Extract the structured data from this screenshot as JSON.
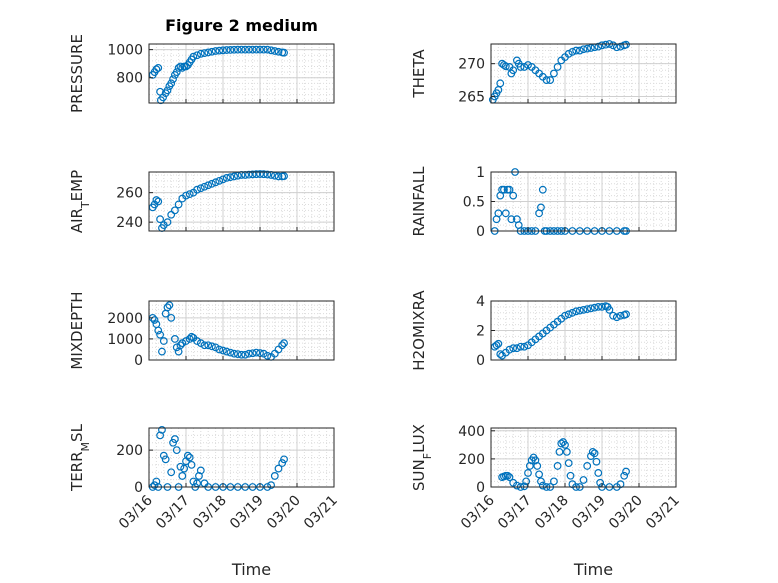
{
  "title": "Figure 2 medium",
  "chart_data": [
    {
      "type": "scatter",
      "ylabel": "PRESSURE",
      "title": "Figure 2 medium",
      "xlim": [
        "03/16",
        "03/21"
      ],
      "ylim": [
        620,
        1040
      ],
      "yticks": [
        800,
        1000
      ],
      "xlabel": "",
      "points": [
        [
          0.1,
          820
        ],
        [
          0.15,
          840
        ],
        [
          0.2,
          860
        ],
        [
          0.25,
          870
        ],
        [
          0.3,
          700
        ],
        [
          0.32,
          640
        ],
        [
          0.38,
          660
        ],
        [
          0.45,
          690
        ],
        [
          0.5,
          710
        ],
        [
          0.55,
          740
        ],
        [
          0.6,
          760
        ],
        [
          0.65,
          790
        ],
        [
          0.7,
          820
        ],
        [
          0.75,
          840
        ],
        [
          0.8,
          870
        ],
        [
          0.85,
          880
        ],
        [
          0.9,
          870
        ],
        [
          0.95,
          880
        ],
        [
          1.0,
          880
        ],
        [
          1.05,
          890
        ],
        [
          1.1,
          910
        ],
        [
          1.15,
          930
        ],
        [
          1.2,
          950
        ],
        [
          1.3,
          960
        ],
        [
          1.4,
          970
        ],
        [
          1.5,
          975
        ],
        [
          1.6,
          980
        ],
        [
          1.7,
          985
        ],
        [
          1.8,
          990
        ],
        [
          1.9,
          993
        ],
        [
          2.0,
          995
        ],
        [
          2.1,
          997
        ],
        [
          2.2,
          998
        ],
        [
          2.3,
          999
        ],
        [
          2.4,
          1000
        ],
        [
          2.5,
          1000
        ],
        [
          2.6,
          1000
        ],
        [
          2.7,
          1000
        ],
        [
          2.8,
          1000
        ],
        [
          2.9,
          1000
        ],
        [
          3.0,
          1000
        ],
        [
          3.1,
          1000
        ],
        [
          3.2,
          1000
        ],
        [
          3.3,
          995
        ],
        [
          3.4,
          990
        ],
        [
          3.5,
          985
        ],
        [
          3.6,
          980
        ],
        [
          3.65,
          978
        ]
      ]
    },
    {
      "type": "scatter",
      "ylabel": "THETA",
      "xlim": [
        "03/16",
        "03/21"
      ],
      "ylim": [
        264,
        273
      ],
      "yticks": [
        265,
        270
      ],
      "xlabel": "",
      "points": [
        [
          0.05,
          264.5
        ],
        [
          0.1,
          265
        ],
        [
          0.15,
          265.5
        ],
        [
          0.2,
          266
        ],
        [
          0.25,
          267
        ],
        [
          0.3,
          270
        ],
        [
          0.35,
          269.8
        ],
        [
          0.4,
          269.6
        ],
        [
          0.5,
          269.5
        ],
        [
          0.55,
          268.5
        ],
        [
          0.6,
          269
        ],
        [
          0.7,
          270.5
        ],
        [
          0.75,
          270
        ],
        [
          0.8,
          269.5
        ],
        [
          0.9,
          269.5
        ],
        [
          1.0,
          269.8
        ],
        [
          1.1,
          269.5
        ],
        [
          1.2,
          269
        ],
        [
          1.3,
          268.5
        ],
        [
          1.4,
          268
        ],
        [
          1.5,
          267.5
        ],
        [
          1.6,
          267.5
        ],
        [
          1.7,
          268.5
        ],
        [
          1.8,
          269.5
        ],
        [
          1.9,
          270.5
        ],
        [
          2.0,
          271
        ],
        [
          2.1,
          271.5
        ],
        [
          2.2,
          271.8
        ],
        [
          2.3,
          272
        ],
        [
          2.4,
          272
        ],
        [
          2.5,
          272.2
        ],
        [
          2.6,
          272.3
        ],
        [
          2.7,
          272.4
        ],
        [
          2.8,
          272.5
        ],
        [
          2.9,
          272.6
        ],
        [
          3.0,
          272.8
        ],
        [
          3.1,
          272.9
        ],
        [
          3.2,
          273
        ],
        [
          3.3,
          272.8
        ],
        [
          3.4,
          272.5
        ],
        [
          3.5,
          272.6
        ],
        [
          3.6,
          272.8
        ],
        [
          3.65,
          272.9
        ]
      ]
    },
    {
      "type": "scatter",
      "ylabel": "AIR_TEMP",
      "xlim": [
        "03/16",
        "03/21"
      ],
      "ylim": [
        234,
        274
      ],
      "yticks": [
        240,
        260
      ],
      "xlabel": "",
      "points": [
        [
          0.1,
          250
        ],
        [
          0.15,
          252
        ],
        [
          0.2,
          255
        ],
        [
          0.25,
          254
        ],
        [
          0.3,
          242
        ],
        [
          0.35,
          236
        ],
        [
          0.4,
          238
        ],
        [
          0.5,
          240
        ],
        [
          0.6,
          245
        ],
        [
          0.7,
          248
        ],
        [
          0.8,
          252
        ],
        [
          0.9,
          256
        ],
        [
          1.0,
          258
        ],
        [
          1.1,
          259
        ],
        [
          1.2,
          260
        ],
        [
          1.3,
          262
        ],
        [
          1.4,
          263
        ],
        [
          1.5,
          264
        ],
        [
          1.6,
          265
        ],
        [
          1.7,
          266
        ],
        [
          1.8,
          267
        ],
        [
          1.9,
          268
        ],
        [
          2.0,
          269
        ],
        [
          2.1,
          270
        ],
        [
          2.2,
          270.5
        ],
        [
          2.3,
          271
        ],
        [
          2.4,
          271.5
        ],
        [
          2.5,
          272
        ],
        [
          2.6,
          272
        ],
        [
          2.7,
          272.2
        ],
        [
          2.8,
          272.4
        ],
        [
          2.9,
          272.5
        ],
        [
          3.0,
          272.6
        ],
        [
          3.1,
          272.5
        ],
        [
          3.2,
          272.3
        ],
        [
          3.3,
          272
        ],
        [
          3.4,
          271.5
        ],
        [
          3.5,
          271
        ],
        [
          3.6,
          271
        ],
        [
          3.65,
          271.2
        ]
      ]
    },
    {
      "type": "scatter",
      "ylabel": "RAINFALL",
      "xlim": [
        "03/16",
        "03/21"
      ],
      "ylim": [
        0,
        1
      ],
      "yticks": [
        0,
        0.5,
        1
      ],
      "xlabel": "",
      "points": [
        [
          0.1,
          0
        ],
        [
          0.15,
          0.2
        ],
        [
          0.2,
          0.3
        ],
        [
          0.25,
          0.6
        ],
        [
          0.3,
          0.7
        ],
        [
          0.35,
          0.7
        ],
        [
          0.4,
          0.3
        ],
        [
          0.45,
          0.7
        ],
        [
          0.5,
          0.7
        ],
        [
          0.55,
          0.2
        ],
        [
          0.6,
          0.6
        ],
        [
          0.65,
          1.0
        ],
        [
          0.7,
          0.2
        ],
        [
          0.75,
          0.1
        ],
        [
          0.8,
          0
        ],
        [
          0.9,
          0
        ],
        [
          1.0,
          0
        ],
        [
          1.1,
          0
        ],
        [
          1.2,
          0
        ],
        [
          1.3,
          0.3
        ],
        [
          1.35,
          0.4
        ],
        [
          1.4,
          0.7
        ],
        [
          1.45,
          0
        ],
        [
          1.5,
          0
        ],
        [
          1.6,
          0
        ],
        [
          1.7,
          0
        ],
        [
          1.8,
          0
        ],
        [
          1.9,
          0
        ],
        [
          2.0,
          0
        ],
        [
          2.2,
          0
        ],
        [
          2.4,
          0
        ],
        [
          2.6,
          0
        ],
        [
          2.8,
          0
        ],
        [
          3.0,
          0
        ],
        [
          3.2,
          0
        ],
        [
          3.4,
          0
        ],
        [
          3.6,
          0
        ],
        [
          3.65,
          0
        ]
      ]
    },
    {
      "type": "scatter",
      "ylabel": "MIXDEPTH",
      "xlim": [
        "03/16",
        "03/21"
      ],
      "ylim": [
        0,
        2800
      ],
      "yticks": [
        0,
        1000,
        2000
      ],
      "xlabel": "",
      "points": [
        [
          0.1,
          2000
        ],
        [
          0.15,
          1900
        ],
        [
          0.2,
          1700
        ],
        [
          0.25,
          1400
        ],
        [
          0.3,
          1200
        ],
        [
          0.35,
          400
        ],
        [
          0.4,
          900
        ],
        [
          0.45,
          2200
        ],
        [
          0.5,
          2500
        ],
        [
          0.55,
          2600
        ],
        [
          0.6,
          2000
        ],
        [
          0.7,
          1000
        ],
        [
          0.75,
          600
        ],
        [
          0.8,
          400
        ],
        [
          0.85,
          700
        ],
        [
          0.9,
          800
        ],
        [
          1.0,
          900
        ],
        [
          1.1,
          1000
        ],
        [
          1.15,
          1100
        ],
        [
          1.2,
          1050
        ],
        [
          1.3,
          900
        ],
        [
          1.4,
          800
        ],
        [
          1.5,
          700
        ],
        [
          1.6,
          700
        ],
        [
          1.7,
          650
        ],
        [
          1.8,
          600
        ],
        [
          1.9,
          500
        ],
        [
          2.0,
          450
        ],
        [
          2.1,
          400
        ],
        [
          2.2,
          350
        ],
        [
          2.3,
          300
        ],
        [
          2.4,
          280
        ],
        [
          2.5,
          250
        ],
        [
          2.6,
          250
        ],
        [
          2.7,
          300
        ],
        [
          2.8,
          320
        ],
        [
          2.9,
          350
        ],
        [
          3.0,
          330
        ],
        [
          3.1,
          300
        ],
        [
          3.2,
          200
        ],
        [
          3.3,
          150
        ],
        [
          3.4,
          300
        ],
        [
          3.5,
          500
        ],
        [
          3.6,
          700
        ],
        [
          3.65,
          800
        ]
      ]
    },
    {
      "type": "scatter",
      "ylabel": "H2OMIXRA",
      "xlim": [
        "03/16",
        "03/21"
      ],
      "ylim": [
        0,
        4
      ],
      "yticks": [
        0,
        2,
        4
      ],
      "xlabel": "",
      "points": [
        [
          0.1,
          0.9
        ],
        [
          0.15,
          1.0
        ],
        [
          0.2,
          1.1
        ],
        [
          0.25,
          0.4
        ],
        [
          0.3,
          0.3
        ],
        [
          0.4,
          0.5
        ],
        [
          0.5,
          0.7
        ],
        [
          0.6,
          0.8
        ],
        [
          0.7,
          0.8
        ],
        [
          0.8,
          0.9
        ],
        [
          0.9,
          0.9
        ],
        [
          1.0,
          1.0
        ],
        [
          1.1,
          1.2
        ],
        [
          1.2,
          1.4
        ],
        [
          1.3,
          1.6
        ],
        [
          1.4,
          1.8
        ],
        [
          1.5,
          2.0
        ],
        [
          1.6,
          2.2
        ],
        [
          1.7,
          2.4
        ],
        [
          1.8,
          2.6
        ],
        [
          1.9,
          2.8
        ],
        [
          2.0,
          3.0
        ],
        [
          2.1,
          3.1
        ],
        [
          2.2,
          3.2
        ],
        [
          2.3,
          3.3
        ],
        [
          2.4,
          3.35
        ],
        [
          2.5,
          3.4
        ],
        [
          2.6,
          3.45
        ],
        [
          2.7,
          3.5
        ],
        [
          2.8,
          3.55
        ],
        [
          2.9,
          3.6
        ],
        [
          3.0,
          3.6
        ],
        [
          3.1,
          3.65
        ],
        [
          3.15,
          3.6
        ],
        [
          3.2,
          3.4
        ],
        [
          3.3,
          3.0
        ],
        [
          3.4,
          2.9
        ],
        [
          3.5,
          3.0
        ],
        [
          3.6,
          3.05
        ],
        [
          3.65,
          3.1
        ]
      ]
    },
    {
      "type": "scatter",
      "ylabel": "TERR_MSL",
      "xlim": [
        "03/16",
        "03/21"
      ],
      "ylim": [
        0,
        320
      ],
      "yticks": [
        0,
        200
      ],
      "xlabel": "Time",
      "points": [
        [
          0.1,
          0
        ],
        [
          0.15,
          10
        ],
        [
          0.2,
          30
        ],
        [
          0.25,
          0
        ],
        [
          0.3,
          280
        ],
        [
          0.35,
          310
        ],
        [
          0.4,
          170
        ],
        [
          0.45,
          150
        ],
        [
          0.5,
          0
        ],
        [
          0.6,
          80
        ],
        [
          0.65,
          240
        ],
        [
          0.7,
          260
        ],
        [
          0.75,
          200
        ],
        [
          0.8,
          0
        ],
        [
          0.85,
          110
        ],
        [
          0.9,
          60
        ],
        [
          0.95,
          100
        ],
        [
          1.0,
          140
        ],
        [
          1.05,
          170
        ],
        [
          1.1,
          160
        ],
        [
          1.15,
          120
        ],
        [
          1.2,
          30
        ],
        [
          1.25,
          0
        ],
        [
          1.3,
          20
        ],
        [
          1.35,
          60
        ],
        [
          1.4,
          90
        ],
        [
          1.5,
          20
        ],
        [
          1.6,
          0
        ],
        [
          1.8,
          0
        ],
        [
          2.0,
          0
        ],
        [
          2.2,
          0
        ],
        [
          2.4,
          0
        ],
        [
          2.6,
          0
        ],
        [
          2.8,
          0
        ],
        [
          3.0,
          0
        ],
        [
          3.2,
          0
        ],
        [
          3.3,
          10
        ],
        [
          3.4,
          60
        ],
        [
          3.5,
          100
        ],
        [
          3.6,
          130
        ],
        [
          3.65,
          150
        ]
      ]
    },
    {
      "type": "scatter",
      "ylabel": "SUN_FLUX",
      "xlim": [
        "03/16",
        "03/21"
      ],
      "ylim": [
        0,
        420
      ],
      "yticks": [
        0,
        200,
        400
      ],
      "xlabel": "Time",
      "points": [
        [
          0.3,
          70
        ],
        [
          0.35,
          75
        ],
        [
          0.4,
          80
        ],
        [
          0.45,
          80
        ],
        [
          0.5,
          70
        ],
        [
          0.6,
          30
        ],
        [
          0.7,
          10
        ],
        [
          0.8,
          0
        ],
        [
          0.9,
          5
        ],
        [
          0.95,
          40
        ],
        [
          1.0,
          100
        ],
        [
          1.05,
          150
        ],
        [
          1.1,
          190
        ],
        [
          1.15,
          210
        ],
        [
          1.2,
          190
        ],
        [
          1.25,
          150
        ],
        [
          1.3,
          90
        ],
        [
          1.35,
          40
        ],
        [
          1.4,
          10
        ],
        [
          1.5,
          0
        ],
        [
          1.6,
          0
        ],
        [
          1.7,
          40
        ],
        [
          1.8,
          150
        ],
        [
          1.85,
          250
        ],
        [
          1.9,
          310
        ],
        [
          1.95,
          320
        ],
        [
          2.0,
          300
        ],
        [
          2.05,
          250
        ],
        [
          2.1,
          170
        ],
        [
          2.15,
          80
        ],
        [
          2.2,
          20
        ],
        [
          2.3,
          0
        ],
        [
          2.4,
          0
        ],
        [
          2.5,
          50
        ],
        [
          2.6,
          150
        ],
        [
          2.7,
          220
        ],
        [
          2.75,
          250
        ],
        [
          2.8,
          240
        ],
        [
          2.85,
          180
        ],
        [
          2.9,
          100
        ],
        [
          2.95,
          30
        ],
        [
          3.0,
          0
        ],
        [
          3.2,
          0
        ],
        [
          3.4,
          0
        ],
        [
          3.5,
          20
        ],
        [
          3.6,
          80
        ],
        [
          3.65,
          110
        ]
      ]
    }
  ],
  "xticks": [
    "03/16",
    "03/17",
    "03/18",
    "03/19",
    "03/20",
    "03/21"
  ],
  "marker_color": "#0072bd"
}
